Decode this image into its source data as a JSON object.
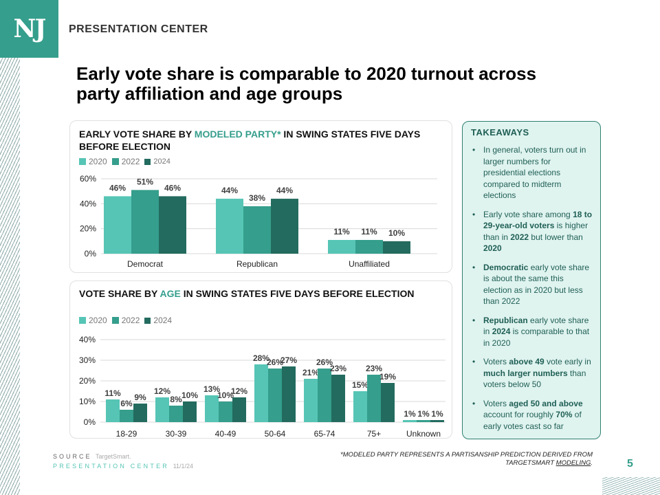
{
  "logo": {
    "text": "NJ"
  },
  "header": {
    "brand": "PRESENTATION CENTER"
  },
  "title": "Early vote share is comparable to 2020 turnout across party affiliation and age groups",
  "colors": {
    "2020": "#56C5B5",
    "2022": "#359E8C",
    "2024": "#236B5F",
    "accent": "#359E8C"
  },
  "chart1_title": {
    "pre": "EARLY VOTE SHARE BY ",
    "highlight": "MODELED PARTY*",
    "post": " IN SWING STATES FIVE DAYS BEFORE ELECTION"
  },
  "chart2_title": {
    "pre": "VOTE SHARE BY ",
    "highlight": "AGE",
    "post": " IN SWING STATES FIVE DAYS BEFORE ELECTION"
  },
  "legend": [
    "2020",
    "2022",
    "2024"
  ],
  "chart_data": [
    {
      "type": "bar",
      "title": "EARLY VOTE SHARE BY MODELED PARTY* IN SWING STATES FIVE DAYS BEFORE ELECTION",
      "categories": [
        "Democrat",
        "Republican",
        "Unaffiliated"
      ],
      "series": [
        {
          "name": "2020",
          "values": [
            46,
            44,
            11
          ]
        },
        {
          "name": "2022",
          "values": [
            51,
            38,
            11
          ]
        },
        {
          "name": "2024",
          "values": [
            46,
            44,
            10
          ]
        }
      ],
      "yticks": [
        "0%",
        "20%",
        "40%",
        "60%"
      ],
      "ylim": [
        0,
        60
      ],
      "grid": true,
      "legend_position": "top-left",
      "xlabel": "",
      "ylabel": ""
    },
    {
      "type": "bar",
      "title": "VOTE SHARE BY AGE IN SWING STATES FIVE DAYS BEFORE ELECTION",
      "categories": [
        "18-29",
        "30-39",
        "40-49",
        "50-64",
        "65-74",
        "75+",
        "Unknown"
      ],
      "series": [
        {
          "name": "2020",
          "values": [
            11,
            12,
            13,
            28,
            21,
            15,
            1
          ]
        },
        {
          "name": "2022",
          "values": [
            6,
            8,
            10,
            26,
            26,
            23,
            1
          ]
        },
        {
          "name": "2024",
          "values": [
            9,
            10,
            12,
            27,
            23,
            19,
            1
          ]
        }
      ],
      "yticks": [
        "0%",
        "10%",
        "20%",
        "30%",
        "40%"
      ],
      "ylim": [
        0,
        40
      ],
      "grid": true,
      "legend_position": "top-left",
      "xlabel": "",
      "ylabel": ""
    }
  ],
  "takeaways": {
    "title": "TAKEAWAYS",
    "items": [
      [
        {
          "t": "In general, voters turn out in larger numbers for presidential elections compared to midterm elections",
          "b": false
        }
      ],
      [
        {
          "t": "Early vote share among ",
          "b": false
        },
        {
          "t": "18 to 29-year-old voters",
          "b": true
        },
        {
          "t": " is higher than in ",
          "b": false
        },
        {
          "t": "2022",
          "b": true
        },
        {
          "t": " but lower than ",
          "b": false
        },
        {
          "t": "2020",
          "b": true
        }
      ],
      [
        {
          "t": "Democratic",
          "b": true
        },
        {
          "t": " early vote share is about the same this election as in 2020 but less than 2022",
          "b": false
        }
      ],
      [
        {
          "t": "Republican",
          "b": true
        },
        {
          "t": " early vote share in ",
          "b": false
        },
        {
          "t": "2024",
          "b": true
        },
        {
          "t": " is comparable to that in 2020",
          "b": false
        }
      ],
      [
        {
          "t": "Voters ",
          "b": false
        },
        {
          "t": "above 49",
          "b": true
        },
        {
          "t": " vote early in ",
          "b": false
        },
        {
          "t": "much larger numbers",
          "b": true
        },
        {
          "t": " than voters below 50",
          "b": false
        }
      ],
      [
        {
          "t": "Voters ",
          "b": false
        },
        {
          "t": "aged 50 and above",
          "b": true
        },
        {
          "t": " account for roughly ",
          "b": false
        },
        {
          "t": "70%",
          "b": true
        },
        {
          "t": " of early votes cast so far",
          "b": false
        }
      ]
    ]
  },
  "footer": {
    "source_label": "SOURCE",
    "source_value": "TargetSmart.",
    "pc_label": "PRESENTATION CENTER",
    "date": "11/1/24",
    "footnote_pre": "*MODELED PARTY REPRESENTS A PARTISANSHIP PREDICTION DERIVED FROM TARGETSMART ",
    "footnote_link": "MODELING",
    "footnote_post": ".",
    "page_number": "5"
  }
}
